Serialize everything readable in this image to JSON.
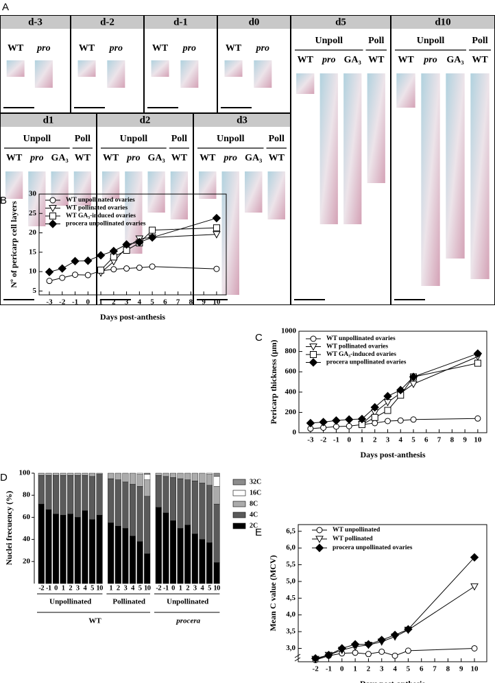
{
  "panel_a": {
    "label": "A",
    "boxes": [
      {
        "day": "d-3",
        "columns": [
          "WT",
          {
            "label": "pro",
            "italic": true
          }
        ]
      },
      {
        "day": "d-2",
        "columns": [
          "WT",
          {
            "label": "pro",
            "italic": true
          }
        ]
      },
      {
        "day": "d-1",
        "columns": [
          "WT",
          {
            "label": "pro",
            "italic": true
          }
        ]
      },
      {
        "day": "d0",
        "columns": [
          "WT",
          {
            "label": "pro",
            "italic": true
          }
        ]
      },
      {
        "day": "d5",
        "groups": [
          {
            "label": "Unpoll",
            "columns": [
              "WT",
              {
                "label": "pro",
                "italic": true
              },
              "GA₃"
            ]
          },
          {
            "label": "Poll",
            "columns": [
              "WT"
            ]
          }
        ]
      },
      {
        "day": "d10",
        "groups": [
          {
            "label": "Unpoll",
            "columns": [
              "WT",
              {
                "label": "pro",
                "italic": true
              },
              "GA₃"
            ]
          },
          {
            "label": "Poll",
            "columns": [
              "WT"
            ]
          }
        ]
      },
      {
        "day": "d1",
        "groups": [
          {
            "label": "Unpoll",
            "columns": [
              "WT",
              {
                "label": "pro",
                "italic": true
              },
              "GA₃"
            ]
          },
          {
            "label": "Poll",
            "columns": [
              "WT"
            ]
          }
        ]
      },
      {
        "day": "d2",
        "groups": [
          {
            "label": "Unpoll",
            "columns": [
              "WT",
              {
                "label": "pro",
                "italic": true
              },
              "GA₃"
            ]
          },
          {
            "label": "Poll",
            "columns": [
              "WT"
            ]
          }
        ]
      },
      {
        "day": "d3",
        "groups": [
          {
            "label": "Unpoll",
            "columns": [
              "WT",
              {
                "label": "pro",
                "italic": true
              },
              "GA₃"
            ]
          },
          {
            "label": "Poll",
            "columns": [
              "WT"
            ]
          }
        ]
      }
    ]
  },
  "chart_data": [
    {
      "type": "line",
      "panel": "B",
      "y_label": "Nº of pericarp cell layers",
      "x_label": "Days post-anthesis",
      "xlim": [
        -3.8,
        10.75
      ],
      "xticks": [
        -3,
        -2,
        -1,
        0,
        1,
        2,
        3,
        4,
        5,
        6,
        7,
        8,
        9,
        10
      ],
      "ylim": [
        4,
        30
      ],
      "yticks": [
        5,
        10,
        15,
        20,
        25,
        30
      ],
      "series": [
        {
          "name": "WT unpollinated ovaries",
          "color": "#000000",
          "marker": "circle",
          "fill": "#ffffff",
          "x": [
            -3,
            -2,
            -1,
            0,
            1,
            2,
            3,
            4,
            5,
            10
          ],
          "values": [
            7.6,
            8.4,
            9.2,
            9.1,
            10.2,
            10.6,
            10.8,
            11.0,
            11.3,
            10.7
          ]
        },
        {
          "name": "WT pollinated ovaries",
          "color": "#000000",
          "marker": "triangle-down",
          "fill": "#ffffff",
          "x": [
            1,
            2,
            3,
            4,
            5,
            10
          ],
          "values": [
            9.7,
            12.6,
            16.2,
            18.5,
            18.8,
            19.6
          ]
        },
        {
          "name": "WT GA₃-induced ovaries",
          "color": "#000000",
          "marker": "square",
          "fill": "#ffffff",
          "x": [
            1,
            2,
            3,
            4,
            5,
            10
          ],
          "values": [
            10.4,
            13.8,
            15.5,
            17.4,
            20.7,
            21.3
          ]
        },
        {
          "name": "procera unpollinated ovaries",
          "color": "#000000",
          "marker": "diamond",
          "fill": "#000000",
          "x": [
            -3,
            -2,
            -1,
            0,
            1,
            2,
            3,
            4,
            5,
            10
          ],
          "values": [
            9.9,
            10.8,
            12.7,
            12.8,
            14.2,
            15.3,
            17.0,
            17.6,
            18.8,
            23.8
          ]
        }
      ]
    },
    {
      "type": "line",
      "panel": "C",
      "y_label": "Pericarp thickness (µm)",
      "x_label": "Days post-anthesis",
      "xlim": [
        -3.9,
        10.7
      ],
      "xticks": [
        -3,
        -2,
        -1,
        0,
        1,
        2,
        3,
        4,
        5,
        6,
        7,
        8,
        9,
        10
      ],
      "ylim": [
        0,
        1000
      ],
      "yticks": [
        0,
        200,
        400,
        600,
        800,
        1000
      ],
      "series": [
        {
          "name": "WT unpollinated ovaries",
          "color": "#000000",
          "marker": "circle",
          "fill": "#ffffff",
          "x": [
            -3,
            -2,
            -1,
            0,
            1,
            2,
            3,
            4,
            5,
            10
          ],
          "values": [
            40,
            50,
            60,
            65,
            80,
            95,
            115,
            120,
            130,
            140
          ]
        },
        {
          "name": "WT pollinated ovaries",
          "color": "#000000",
          "marker": "triangle-down",
          "fill": "#ffffff",
          "x": [
            1,
            2,
            3,
            4,
            5,
            10
          ],
          "values": [
            85,
            200,
            300,
            390,
            480,
            750
          ]
        },
        {
          "name": "WT GA₃-induced ovaries",
          "color": "#000000",
          "marker": "square",
          "fill": "#ffffff",
          "x": [
            1,
            2,
            3,
            4,
            5,
            10
          ],
          "values": [
            80,
            150,
            220,
            370,
            550,
            685
          ]
        },
        {
          "name": "procera unpollinated ovaries",
          "color": "#000000",
          "marker": "diamond",
          "fill": "#000000",
          "x": [
            -3,
            -2,
            -1,
            0,
            1,
            2,
            3,
            4,
            5,
            10
          ],
          "values": [
            95,
            105,
            120,
            130,
            135,
            250,
            360,
            420,
            550,
            780
          ]
        }
      ]
    },
    {
      "type": "stacked-bar",
      "panel": "D",
      "y_label": "Nuclei frecuency (%)",
      "ylim": [
        0,
        100
      ],
      "yticks": [
        20,
        40,
        60,
        80,
        100
      ],
      "genotypes": [
        {
          "label": "WT",
          "groups": [
            {
              "label": "Unpollinated",
              "categories": [
                "-2",
                "-1",
                "0",
                "1",
                "2",
                "3",
                "4",
                "5",
                "10"
              ]
            },
            {
              "label": "Pollinated",
              "categories": [
                "1",
                "2",
                "3",
                "4",
                "5",
                "10"
              ]
            }
          ]
        },
        {
          "label": "procera",
          "italic": true,
          "groups": [
            {
              "label": "Unpollinated",
              "categories": [
                "-2",
                "-1",
                "0",
                "1",
                "2",
                "3",
                "4",
                "5",
                "10"
              ]
            }
          ]
        }
      ],
      "series": [
        {
          "name": "2C",
          "color": "#000000",
          "values": [
            72,
            67,
            63,
            62,
            63,
            60,
            66,
            58,
            62,
            55,
            52,
            50,
            43,
            38,
            27,
            69,
            64,
            57,
            50,
            53,
            45,
            40,
            37,
            19
          ]
        },
        {
          "name": "4C",
          "color": "#5a5a5a",
          "values": [
            26,
            31,
            35,
            36,
            35,
            38,
            32,
            39,
            37,
            40,
            42,
            42,
            47,
            50,
            52,
            29,
            33,
            39,
            45,
            41,
            48,
            51,
            52,
            53
          ]
        },
        {
          "name": "8C",
          "color": "#ababab",
          "values": [
            2,
            2,
            2,
            2,
            2,
            2,
            2,
            3,
            1,
            5,
            6,
            8,
            10,
            11,
            15,
            2,
            3,
            4,
            5,
            6,
            7,
            9,
            10,
            16
          ]
        },
        {
          "name": "16C",
          "color": "#ffffff",
          "values": [
            0,
            0,
            0,
            0,
            0,
            0,
            0,
            0,
            0,
            0,
            0,
            0,
            0,
            1,
            5,
            0,
            0,
            0,
            0,
            0,
            0,
            0,
            1,
            9
          ]
        },
        {
          "name": "32C",
          "color": "#8c8c8c",
          "values": [
            0,
            0,
            0,
            0,
            0,
            0,
            0,
            0,
            0,
            0,
            0,
            0,
            0,
            0,
            1,
            0,
            0,
            0,
            0,
            0,
            0,
            0,
            0,
            3
          ]
        }
      ]
    },
    {
      "type": "line",
      "panel": "E",
      "y_label": "Mean C value (MCV)",
      "x_label": "Days post-anthesis",
      "xlim": [
        -3.3,
        10.93
      ],
      "xticks": [
        -2,
        -1,
        0,
        1,
        2,
        3,
        4,
        5,
        6,
        7,
        8,
        9,
        10
      ],
      "ylim": [
        2.6,
        6.7
      ],
      "yticks": [
        {
          "value": 3,
          "label": "3,0"
        },
        {
          "value": 3.5,
          "label": "3,5"
        },
        {
          "value": 4,
          "label": "4,0"
        },
        {
          "value": 4.5,
          "label": "4,5"
        },
        {
          "value": 5,
          "label": "5,0"
        },
        {
          "value": 5.5,
          "label": "5,5"
        },
        {
          "value": 6,
          "label": "6,0"
        },
        {
          "value": 6.5,
          "label": "6,5"
        }
      ],
      "series": [
        {
          "name": "WT unpollinated",
          "color": "#000000",
          "marker": "circle",
          "fill": "#ffffff",
          "x": [
            -2,
            -1,
            0,
            1,
            2,
            3,
            4,
            5,
            10
          ],
          "values": [
            2.65,
            2.78,
            2.85,
            2.87,
            2.83,
            2.9,
            2.78,
            2.93,
            3.0
          ]
        },
        {
          "name": "WT pollinated",
          "color": "#000000",
          "marker": "triangle-down",
          "fill": "#ffffff",
          "x": [
            -2,
            -1,
            0,
            1,
            2,
            3,
            4,
            5,
            10
          ],
          "values": [
            2.68,
            2.8,
            2.95,
            3.05,
            3.1,
            3.2,
            3.35,
            3.55,
            4.85
          ]
        },
        {
          "name": "procera unpollinated ovaries",
          "color": "#000000",
          "marker": "diamond",
          "fill": "#000000",
          "x": [
            -2,
            -1,
            0,
            1,
            2,
            3,
            4,
            5,
            10
          ],
          "values": [
            2.7,
            2.8,
            3.0,
            3.12,
            3.12,
            3.25,
            3.4,
            3.57,
            5.72
          ]
        }
      ]
    }
  ]
}
